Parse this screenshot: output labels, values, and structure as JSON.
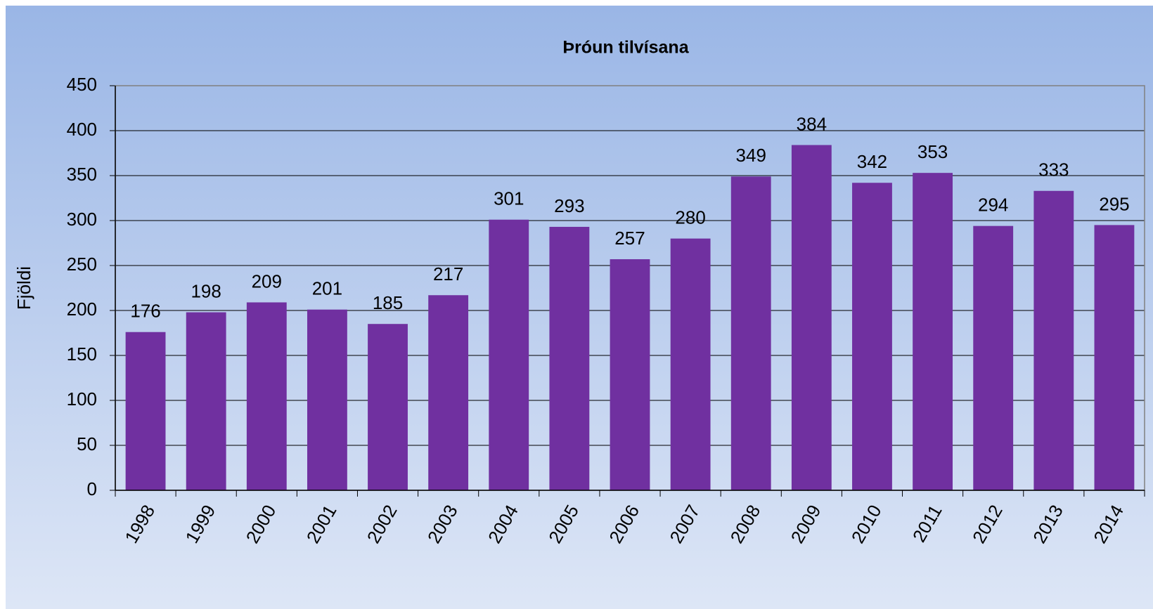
{
  "chart_data": {
    "type": "bar",
    "title": "Þróun tilvísana",
    "y_label": "Fjöldi",
    "categories": [
      "1998",
      "1999",
      "2000",
      "2001",
      "2002",
      "2003",
      "2004",
      "2005",
      "2006",
      "2007",
      "2008",
      "2009",
      "2010",
      "2011",
      "2012",
      "2013",
      "2014"
    ],
    "values": [
      176,
      198,
      209,
      201,
      185,
      217,
      301,
      293,
      257,
      280,
      349,
      384,
      342,
      353,
      294,
      333,
      295
    ],
    "color": "#7030a0",
    "ylim": [
      0,
      450
    ],
    "yticks": [
      0,
      50,
      100,
      150,
      200,
      250,
      300,
      350,
      400,
      450
    ],
    "grid": true
  }
}
